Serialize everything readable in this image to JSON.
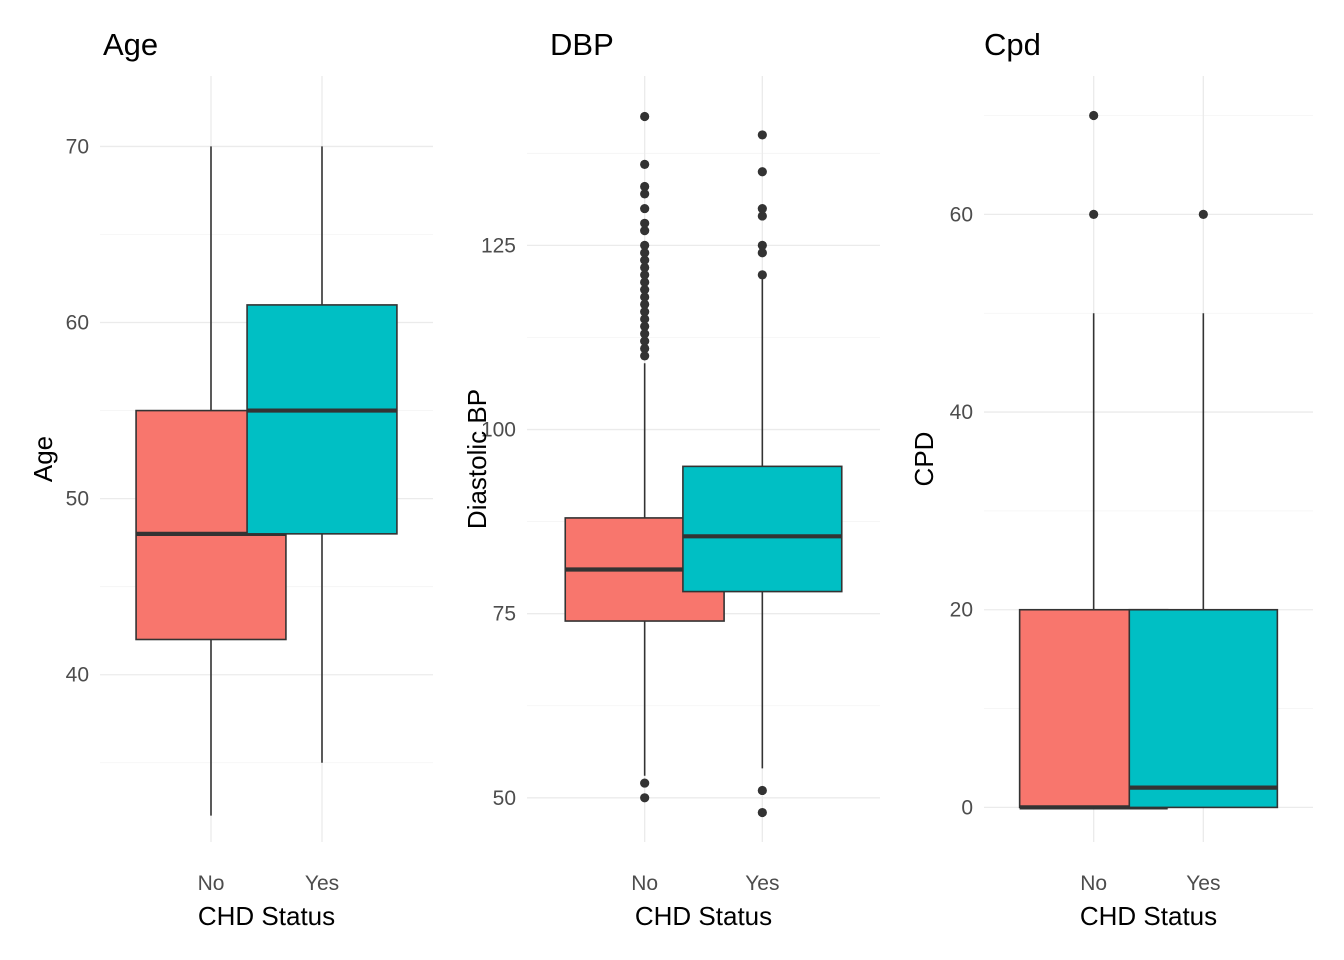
{
  "chart_data": [
    {
      "type": "box",
      "title": "Age",
      "xlabel": "CHD Status",
      "ylabel": "Age",
      "ylim": [
        30.5,
        74
      ],
      "y_ticks": [
        40,
        50,
        60,
        70
      ],
      "y_minor": [
        35,
        45,
        55,
        65
      ],
      "grid": true,
      "legend": "none",
      "categories": [
        "No",
        "Yes"
      ],
      "boxes": [
        {
          "category": "No",
          "color": "#F8766D",
          "whisker_low": 32,
          "q1": 42,
          "median": 48,
          "q3": 55,
          "whisker_high": 70,
          "outliers": []
        },
        {
          "category": "Yes",
          "color": "#00BFC4",
          "whisker_low": 35,
          "q1": 48,
          "median": 55,
          "q3": 61,
          "whisker_high": 70,
          "outliers": []
        }
      ]
    },
    {
      "type": "box",
      "title": "DBP",
      "xlabel": "CHD Status",
      "ylabel": "Diastolic BP",
      "ylim": [
        44,
        148
      ],
      "y_ticks": [
        50,
        75,
        100,
        125
      ],
      "y_minor": [
        62.5,
        87.5,
        112.5,
        137.5
      ],
      "grid": true,
      "legend": "none",
      "categories": [
        "No",
        "Yes"
      ],
      "boxes": [
        {
          "category": "No",
          "color": "#F8766D",
          "whisker_low": 53,
          "q1": 74,
          "median": 81,
          "q3": 88,
          "whisker_high": 109,
          "outliers": [
            50,
            52,
            110,
            111,
            112,
            113,
            114,
            115,
            116,
            117,
            118,
            119,
            120,
            121,
            122,
            123,
            124,
            125,
            127,
            128,
            130,
            132,
            133,
            136,
            142.5
          ]
        },
        {
          "category": "Yes",
          "color": "#00BFC4",
          "whisker_low": 54,
          "q1": 78,
          "median": 85.5,
          "q3": 95,
          "whisker_high": 120.5,
          "outliers": [
            48,
            51,
            121,
            124,
            125,
            129,
            130,
            135,
            140
          ]
        }
      ]
    },
    {
      "type": "box",
      "title": "Cpd",
      "xlabel": "CHD Status",
      "ylabel": "CPD",
      "ylim": [
        -3.5,
        74
      ],
      "y_ticks": [
        0,
        20,
        40,
        60
      ],
      "y_minor": [
        10,
        30,
        50,
        70
      ],
      "grid": true,
      "legend": "none",
      "categories": [
        "No",
        "Yes"
      ],
      "boxes": [
        {
          "category": "No",
          "color": "#F8766D",
          "whisker_low": 0,
          "q1": 0,
          "median": 0,
          "q3": 20,
          "whisker_high": 50,
          "outliers": [
            60,
            70
          ]
        },
        {
          "category": "Yes",
          "color": "#00BFC4",
          "whisker_low": 0,
          "q1": 0,
          "median": 2,
          "q3": 20,
          "whisker_high": 50,
          "outliers": [
            60
          ]
        }
      ]
    }
  ]
}
